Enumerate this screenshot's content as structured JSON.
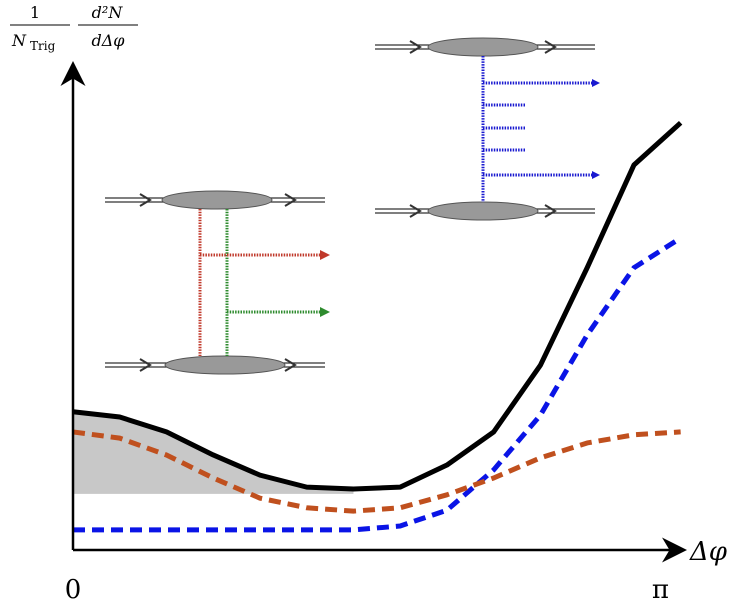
{
  "chart_data": {
    "type": "line",
    "y_label": {
      "left_num": "1",
      "left_den": "N",
      "left_den_sub": "Trig",
      "right_num": "d²N",
      "right_den": "dΔφ"
    },
    "x_label": "Δφ",
    "xlim": [
      0,
      3.3
    ],
    "ylim": [
      0,
      1
    ],
    "xticks": [
      0,
      {
        "value": 3.14159,
        "label": "π"
      }
    ],
    "x": [
      0,
      0.25,
      0.5,
      0.75,
      1,
      1.25,
      1.5,
      1.75,
      2,
      2.25,
      2.5,
      2.75,
      3,
      3.25
    ],
    "series": [
      {
        "color": "#000000",
        "dash": false,
        "values": [
          0.288,
          0.277,
          0.246,
          0.198,
          0.156,
          0.131,
          0.127,
          0.131,
          0.177,
          0.246,
          0.385,
          0.588,
          0.802,
          0.89
        ]
      },
      {
        "color": "#0a14e6",
        "dash": true,
        "values": [
          0.042,
          0.042,
          0.042,
          0.042,
          0.042,
          0.042,
          0.042,
          0.05,
          0.083,
          0.167,
          0.281,
          0.448,
          0.588,
          0.65
        ]
      },
      {
        "color": "#c0501e",
        "dash": true,
        "values": [
          0.246,
          0.233,
          0.198,
          0.15,
          0.108,
          0.088,
          0.081,
          0.088,
          0.115,
          0.15,
          0.192,
          0.223,
          0.24,
          0.246
        ]
      }
    ],
    "shade": {
      "xmax": 1.5,
      "ybase": 0.117,
      "color": "#c8c8c8"
    }
  }
}
